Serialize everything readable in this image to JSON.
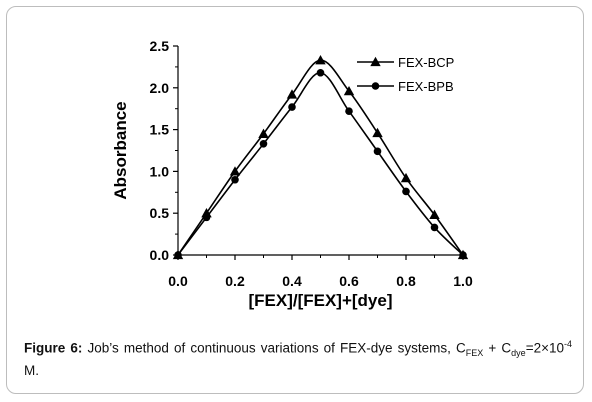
{
  "chart_data": {
    "type": "line",
    "xlabel": "[FEX]/[FEX]+[dye]",
    "ylabel": "Absorbance",
    "xlim": [
      0.0,
      1.0
    ],
    "ylim": [
      0.0,
      2.5
    ],
    "xticks": [
      0.0,
      0.2,
      0.4,
      0.6,
      0.8,
      1.0
    ],
    "xtick_labels": [
      "0.0",
      "0.2",
      "0.4",
      "0.6",
      "0.8",
      "1.0"
    ],
    "yticks": [
      0.0,
      0.5,
      1.0,
      1.5,
      2.0,
      2.5
    ],
    "ytick_labels": [
      "0.0",
      "0.5",
      "1.0",
      "1.5",
      "2.0",
      "2.5"
    ],
    "grid": false,
    "legend_position": "top-right",
    "series": [
      {
        "name": "FEX-BCP",
        "marker": "triangle",
        "x": [
          0.0,
          0.1,
          0.2,
          0.3,
          0.4,
          0.5,
          0.6,
          0.7,
          0.8,
          0.9,
          1.0
        ],
        "y": [
          0.0,
          0.5,
          1.0,
          1.45,
          1.92,
          2.33,
          1.96,
          1.46,
          0.92,
          0.48,
          0.0
        ]
      },
      {
        "name": "FEX-BPB",
        "marker": "circle",
        "x": [
          0.0,
          0.1,
          0.2,
          0.3,
          0.4,
          0.5,
          0.6,
          0.7,
          0.8,
          0.9,
          1.0
        ],
        "y": [
          0.0,
          0.45,
          0.9,
          1.33,
          1.77,
          2.18,
          1.72,
          1.24,
          0.76,
          0.33,
          0.0
        ]
      }
    ]
  },
  "caption": {
    "label": "Figure 6:",
    "text_1": " Job’s method of continuous variations of FEX-dye systems, C",
    "sub_1": "FEX",
    "text_2": " + C",
    "sub_2": "dye",
    "text_3": "=2×10",
    "sup_1": "-4",
    "text_4": " M."
  },
  "colors": {
    "line": "#000000",
    "border": "#bdbdbd"
  }
}
